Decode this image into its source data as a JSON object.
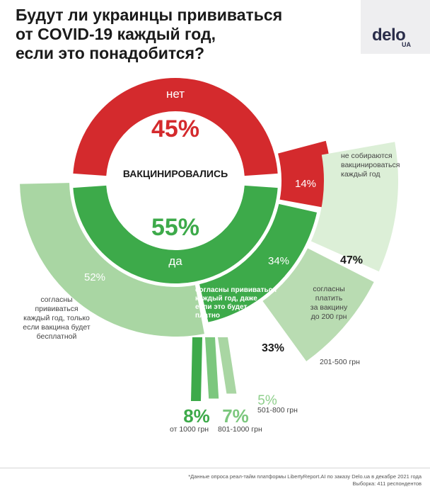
{
  "title_lines": [
    "Будут ли украинцы прививаться",
    "от COVID-19 каждый год,",
    "если это понадобится?"
  ],
  "logo": {
    "main": "delo",
    "sub": "UA"
  },
  "colors": {
    "red": "#d42a2d",
    "green": "#3daa4a",
    "green_mid": "#7cc77e",
    "green_light": "#a9d6a3",
    "green_pale": "#b9dcb2",
    "green_paler": "#dcefd7"
  },
  "chart_data": [
    {
      "type": "pie",
      "center_label": "ВАКЦИНИРОВАЛИСЬ",
      "slices": [
        {
          "label": "нет",
          "value": 45,
          "value_label": "45%"
        },
        {
          "label": "да",
          "value": 55,
          "value_label": "55%"
        }
      ]
    },
    {
      "type": "pie",
      "slices": [
        {
          "label": "не собираются вакцинироваться каждый год",
          "value": 14,
          "value_label": "14%"
        },
        {
          "label": "согласны прививаться каждый год, даже если это будет платно",
          "value": 34,
          "value_label": "34%"
        },
        {
          "label": "согласны прививаться каждый год, только если вакцина будет бесплатной",
          "value": 52,
          "value_label": "52%"
        }
      ]
    },
    {
      "type": "bar",
      "categories": [
        "согласны платить за вакцину до 200 грн",
        "201-500 грн",
        "501-800 грн",
        "801-1000 грн",
        "от 1000 грн"
      ],
      "values": [
        47,
        33,
        5,
        7,
        8
      ],
      "value_labels": [
        "47%",
        "33%",
        "5%",
        "7%",
        "8%"
      ]
    }
  ],
  "labels": {
    "no_label": "нет",
    "no_value": "45%",
    "center": "ВАКЦИНИРОВАЛИСЬ",
    "yes_value": "55%",
    "yes_label": "да",
    "refuse_value": "14%",
    "refuse_note": [
      "не собираются",
      "вакцинироваться",
      "каждый год"
    ],
    "paid_value": "34%",
    "paid_note": [
      "согласны  прививаться",
      "каждый год, даже",
      "если это будет",
      "платно"
    ],
    "free_value": "52%",
    "free_note": [
      "согласны",
      "прививаться",
      "каждый год, только",
      "если вакцина будет",
      "бесплатной"
    ],
    "p200_value": "47%",
    "p200_note": [
      "согласны",
      "платить",
      "за вакцину",
      "до 200 грн"
    ],
    "p500_value": "33%",
    "p500_note": "201-500 грн",
    "p800_value": "5%",
    "p800_note": "501-800 грн",
    "p1000_value": "7%",
    "p1000_note": "801-1000 грн",
    "pmax_value": "8%",
    "pmax_note": "от 1000 грн"
  },
  "footnote": [
    "*Данные опроса реал-тайм платформы LibertyReport.AI по заказу Delo.ua в декабре 2021 года",
    "Выборка: 411 респондентов"
  ]
}
